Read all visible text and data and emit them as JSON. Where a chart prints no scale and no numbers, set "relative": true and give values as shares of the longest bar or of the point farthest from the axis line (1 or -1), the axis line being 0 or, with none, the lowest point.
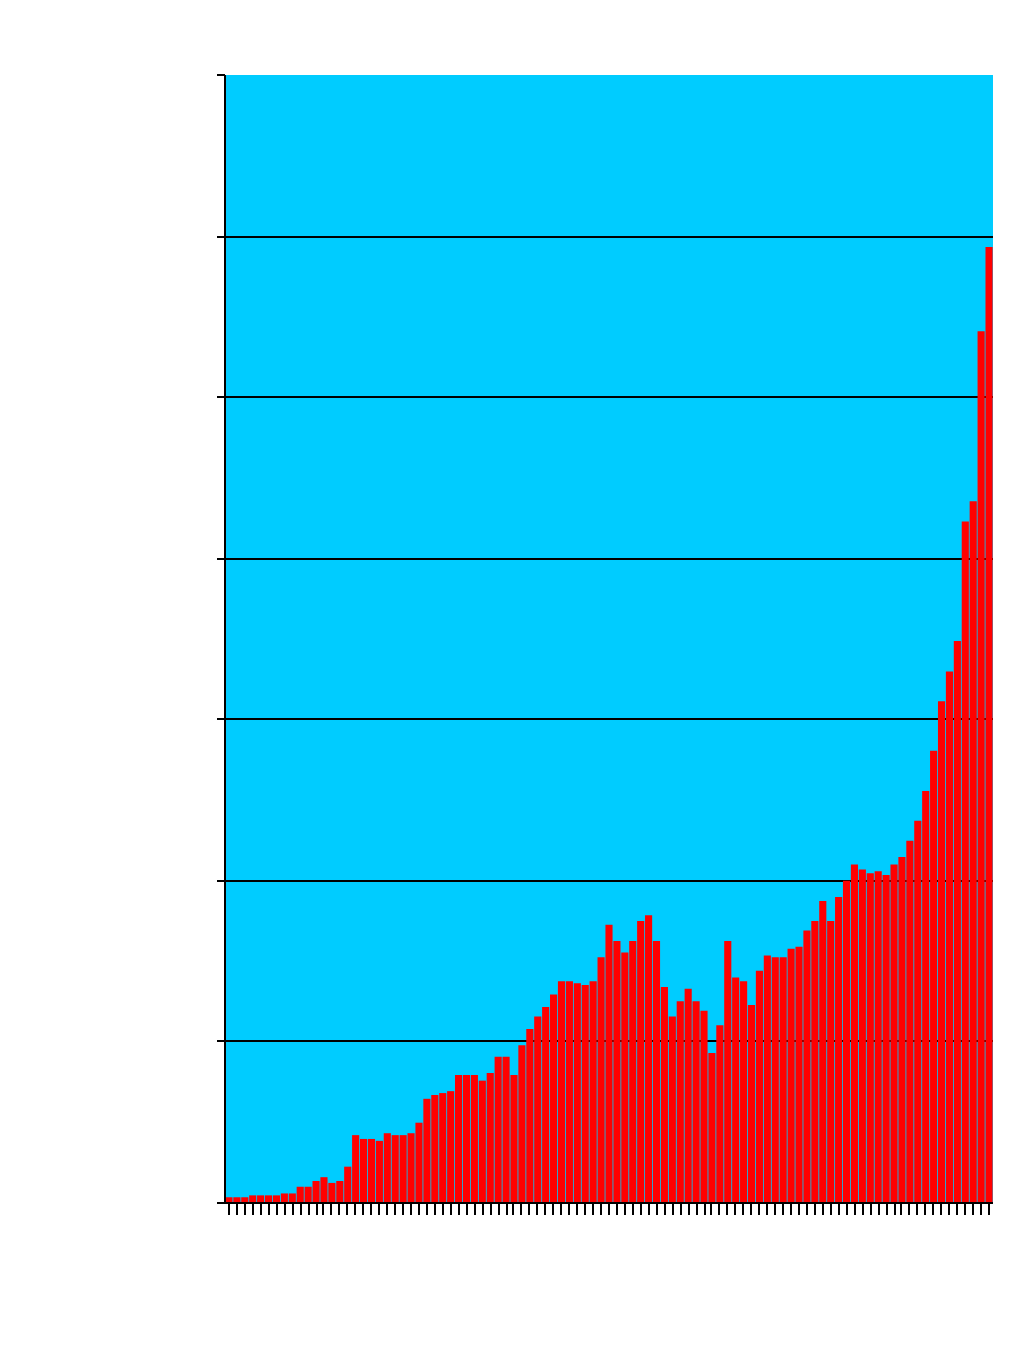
{
  "chart_data": {
    "type": "bar",
    "relative": true,
    "color": "#ff0000",
    "grid": "y",
    "tick_labels": false,
    "categories": [
      null,
      null,
      null,
      null,
      null,
      null,
      null,
      null,
      null,
      null,
      null,
      null,
      null,
      null,
      null,
      null,
      null,
      null,
      null,
      null,
      null,
      null,
      null,
      null,
      null,
      null,
      null,
      null,
      null,
      null,
      null,
      null,
      null,
      null,
      null,
      null,
      null,
      null,
      null,
      null,
      null,
      null,
      null,
      null,
      null,
      null,
      null,
      null,
      null,
      null,
      null,
      null,
      null,
      null,
      null,
      null,
      null,
      null,
      null,
      null,
      null,
      null,
      null,
      null,
      null,
      null,
      null,
      null,
      null,
      null,
      null,
      null,
      null,
      null,
      null,
      null,
      null,
      null,
      null,
      null,
      null,
      null,
      null,
      null,
      null,
      null,
      null,
      null,
      null,
      null,
      null,
      null,
      null,
      null,
      null,
      null,
      null
    ],
    "values": [
      0.006,
      0.006,
      0.006,
      0.008,
      0.008,
      0.008,
      0.008,
      0.01,
      0.01,
      0.017,
      0.017,
      0.023,
      0.027,
      0.021,
      0.023,
      0.038,
      0.071,
      0.067,
      0.067,
      0.065,
      0.073,
      0.071,
      0.071,
      0.073,
      0.084,
      0.109,
      0.113,
      0.115,
      0.117,
      0.134,
      0.134,
      0.134,
      0.128,
      0.136,
      0.153,
      0.153,
      0.134,
      0.165,
      0.182,
      0.195,
      0.205,
      0.218,
      0.232,
      0.232,
      0.23,
      0.228,
      0.232,
      0.257,
      0.291,
      0.274,
      0.262,
      0.274,
      0.295,
      0.301,
      0.274,
      0.226,
      0.195,
      0.211,
      0.224,
      0.211,
      0.201,
      0.157,
      0.186,
      0.274,
      0.236,
      0.232,
      0.207,
      0.243,
      0.259,
      0.257,
      0.257,
      0.266,
      0.268,
      0.285,
      0.295,
      0.316,
      0.295,
      0.32,
      0.337,
      0.354,
      0.349,
      0.345,
      0.347,
      0.343,
      0.354,
      0.362,
      0.379,
      0.4,
      0.431,
      0.473,
      0.525,
      0.556,
      0.588,
      0.713,
      0.734,
      0.912,
      1.0
    ]
  }
}
